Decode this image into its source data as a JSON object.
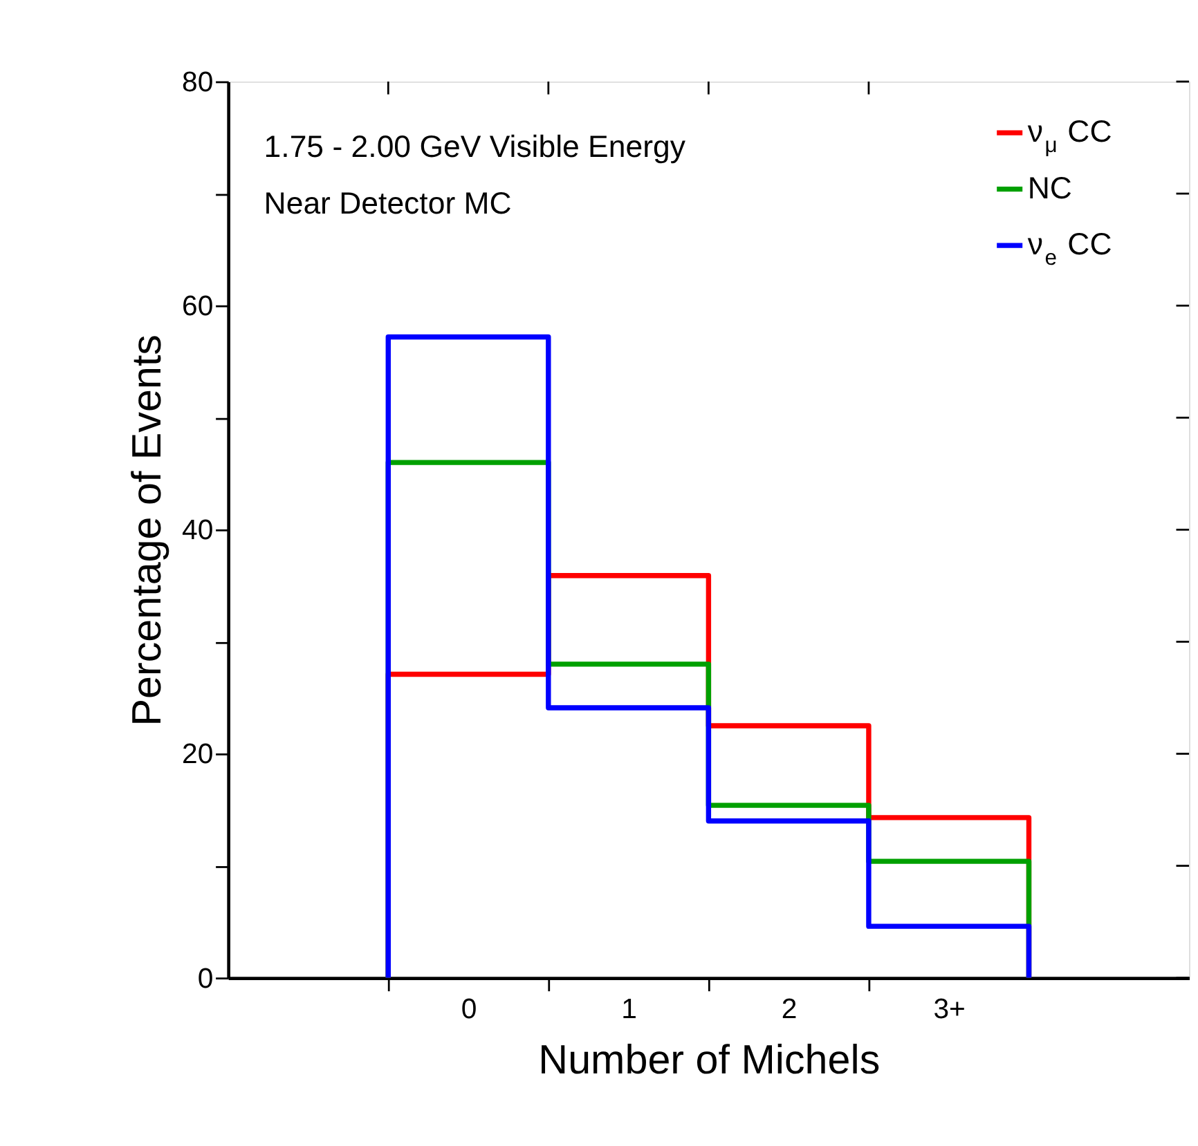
{
  "chart_data": {
    "type": "histogram",
    "xlabel": "Number of Michels",
    "ylabel": "Percentage of Events",
    "bins": [
      -0.5,
      0.5,
      1.5,
      2.5,
      3.5
    ],
    "series": [
      {
        "name": "ν$_{μ}$ CC",
        "color": "#ff0000",
        "values": [
          27.1,
          35.9,
          22.5,
          14.3
        ]
      },
      {
        "name": "NC",
        "color": "#00a000",
        "values": [
          46.0,
          28.0,
          15.4,
          10.4
        ]
      },
      {
        "name": "ν$_{e}$ CC",
        "color": "#0000ff",
        "values": [
          57.2,
          24.1,
          14.0,
          4.6
        ]
      }
    ],
    "xlim": [
      -1.5,
      4.5
    ],
    "xticks": [
      {
        "value": -0.5,
        "label": null
      },
      {
        "value": 0,
        "label": "0"
      },
      {
        "value": 0.5,
        "label": null
      },
      {
        "value": 1,
        "label": "1"
      },
      {
        "value": 1.5,
        "label": null
      },
      {
        "value": 2,
        "label": "2"
      },
      {
        "value": 2.5,
        "label": null
      },
      {
        "value": 3,
        "label": "3+"
      }
    ],
    "ylim": [
      0,
      80
    ],
    "yticks": [
      0,
      {
        "value": 10,
        "label": null
      },
      20,
      {
        "value": 30,
        "label": null
      },
      40,
      {
        "value": 50,
        "label": null
      },
      60,
      {
        "value": 70,
        "label": null
      },
      80
    ],
    "annotations": [
      "1.75 - 2.00 GeV Visible Energy",
      "Near Detector MC"
    ],
    "legend": "top right",
    "grid": false
  }
}
